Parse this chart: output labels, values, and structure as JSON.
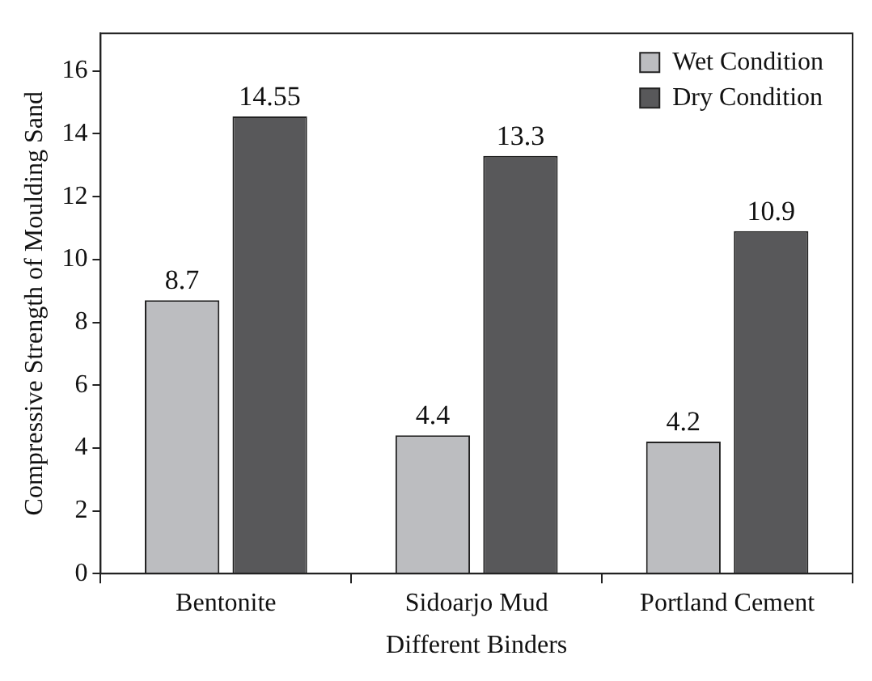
{
  "chart_data": {
    "type": "bar",
    "xlabel": "Different Binders",
    "ylabel": "Compressive Strength of Moulding Sand",
    "categories": [
      "Bentonite",
      "Sidoarjo Mud",
      "Portland Cement"
    ],
    "series": [
      {
        "name": "Wet Condition",
        "color": "#bcbdc0",
        "values": [
          8.7,
          4.4,
          4.2
        ]
      },
      {
        "name": "Dry Condition",
        "color": "#58585a",
        "values": [
          14.55,
          13.3,
          10.9
        ]
      }
    ],
    "ylim": [
      0,
      17.2
    ],
    "yticks": [
      0,
      2,
      4,
      6,
      8,
      10,
      12,
      14,
      16
    ],
    "grid": false,
    "legend": "top right",
    "data_labels": true
  }
}
